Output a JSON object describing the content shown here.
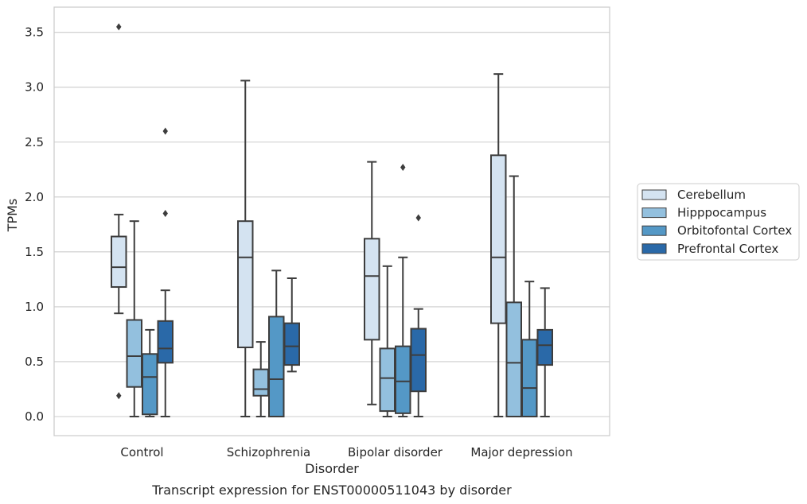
{
  "chart_data": {
    "type": "box",
    "title": "",
    "caption": "Transcript expression for ENST00000511043 by disorder",
    "xlabel": "Disorder",
    "ylabel": "TPMs",
    "ylim": [
      -0.17,
      3.71
    ],
    "yticks": [
      "0.0",
      "0.5",
      "1.0",
      "1.5",
      "2.0",
      "2.5",
      "3.0",
      "3.5"
    ],
    "grid": "horizontal",
    "legend_placement": "center-right outside",
    "categories": [
      "Control",
      "Schizophrenia",
      "Bipolar disorder",
      "Major depression"
    ],
    "series": [
      {
        "name": "Cerebellum",
        "color": "#d4e3f1",
        "boxes": [
          {
            "whislo": 0.94,
            "q1": 1.18,
            "med": 1.36,
            "q3": 1.64,
            "whishi": 1.84,
            "fliers": [
              3.55,
              0.19
            ]
          },
          {
            "whislo": 0.0,
            "q1": 0.63,
            "med": 1.45,
            "q3": 1.78,
            "whishi": 3.06,
            "fliers": []
          },
          {
            "whislo": 0.11,
            "q1": 0.7,
            "med": 1.28,
            "q3": 1.62,
            "whishi": 2.32,
            "fliers": []
          },
          {
            "whislo": 0.0,
            "q1": 0.85,
            "med": 1.45,
            "q3": 2.38,
            "whishi": 3.12,
            "fliers": []
          }
        ]
      },
      {
        "name": "Hipppocampus",
        "color": "#93c0de",
        "boxes": [
          {
            "whislo": 0.0,
            "q1": 0.27,
            "med": 0.55,
            "q3": 0.88,
            "whishi": 1.78,
            "fliers": []
          },
          {
            "whislo": 0.0,
            "q1": 0.19,
            "med": 0.25,
            "q3": 0.43,
            "whishi": 0.68,
            "fliers": []
          },
          {
            "whislo": 0.0,
            "q1": 0.05,
            "med": 0.35,
            "q3": 0.62,
            "whishi": 1.37,
            "fliers": []
          },
          {
            "whislo": 0.0,
            "q1": 0.0,
            "med": 0.49,
            "q3": 1.04,
            "whishi": 2.19,
            "fliers": []
          }
        ]
      },
      {
        "name": "Orbitofontal Cortex",
        "color": "#5498c6",
        "boxes": [
          {
            "whislo": 0.0,
            "q1": 0.02,
            "med": 0.36,
            "q3": 0.57,
            "whishi": 0.79,
            "fliers": []
          },
          {
            "whislo": 0.0,
            "q1": 0.0,
            "med": 0.34,
            "q3": 0.91,
            "whishi": 1.33,
            "fliers": []
          },
          {
            "whislo": 0.0,
            "q1": 0.03,
            "med": 0.32,
            "q3": 0.64,
            "whishi": 1.45,
            "fliers": [
              2.27
            ]
          },
          {
            "whislo": 0.0,
            "q1": 0.0,
            "med": 0.26,
            "q3": 0.7,
            "whishi": 1.23,
            "fliers": []
          }
        ]
      },
      {
        "name": "Prefrontal Cortex",
        "color": "#2a69a8",
        "boxes": [
          {
            "whislo": 0.0,
            "q1": 0.49,
            "med": 0.62,
            "q3": 0.87,
            "whishi": 1.15,
            "fliers": [
              2.6,
              1.85
            ]
          },
          {
            "whislo": 0.41,
            "q1": 0.47,
            "med": 0.64,
            "q3": 0.85,
            "whishi": 1.26,
            "fliers": []
          },
          {
            "whislo": 0.0,
            "q1": 0.23,
            "med": 0.56,
            "q3": 0.8,
            "whishi": 0.98,
            "fliers": [
              1.81
            ]
          },
          {
            "whislo": 0.0,
            "q1": 0.47,
            "med": 0.65,
            "q3": 0.79,
            "whishi": 1.17,
            "fliers": []
          }
        ]
      }
    ]
  }
}
